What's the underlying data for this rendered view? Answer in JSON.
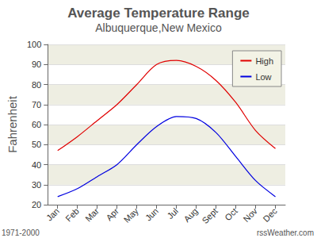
{
  "chart_data": {
    "type": "line",
    "title": "Average Temperature Range",
    "subtitle": "Albuquerque,New Mexico",
    "y_label": "Fahrenheit",
    "annotations": [
      "1971-2000",
      "rssWeather.com"
    ],
    "categories": [
      "Jan",
      "Feb",
      "Mar",
      "Apr",
      "May",
      "Jun",
      "Jul",
      "Aug",
      "Sept",
      "Oct",
      "Nov",
      "Dec"
    ],
    "series": [
      {
        "name": "High",
        "color": "#e00000",
        "values": [
          47,
          54,
          62,
          70,
          80,
          90,
          92,
          89,
          82,
          71,
          57,
          48
        ]
      },
      {
        "name": "Low",
        "color": "#0000e0",
        "values": [
          24,
          28,
          34,
          40,
          50,
          59,
          64,
          63,
          56,
          44,
          32,
          24
        ]
      }
    ],
    "ylim": [
      20,
      100
    ],
    "yticks": [
      20,
      30,
      40,
      50,
      60,
      70,
      80,
      90,
      100
    ],
    "grid": true,
    "legend": "top-right"
  }
}
